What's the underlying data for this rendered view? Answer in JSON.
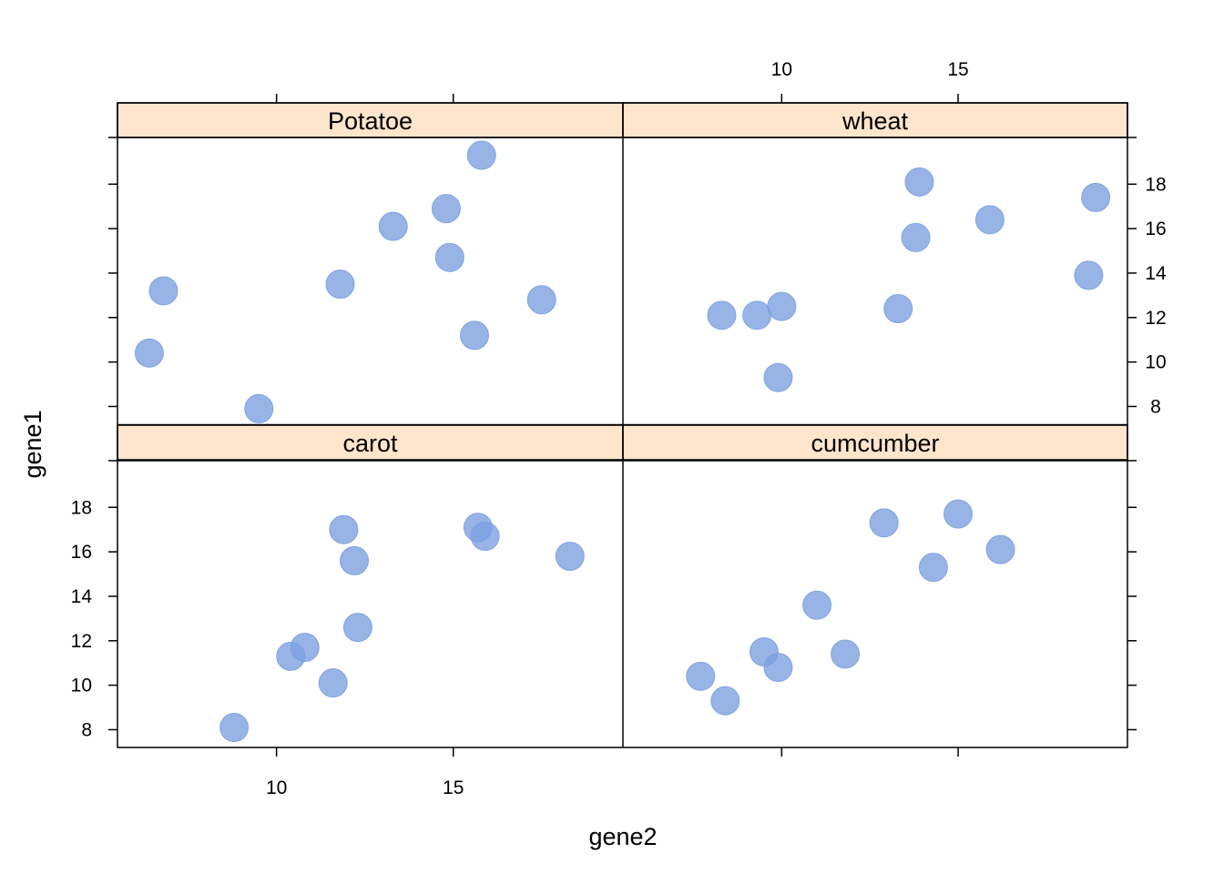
{
  "chart_data": {
    "type": "scatter",
    "layout": "lattice 2x2 panels",
    "xlabel": "gene2",
    "ylabel": "gene1",
    "xlim": [
      5.5,
      19.8
    ],
    "ylim": [
      7.2,
      20.1
    ],
    "x_ticks": [
      10,
      15
    ],
    "y_ticks": [
      8,
      10,
      12,
      14,
      16,
      18
    ],
    "x_tick_labels": [
      "10",
      "15"
    ],
    "y_tick_labels": [
      "8",
      "10",
      "12",
      "14",
      "16",
      "18"
    ],
    "point_color": "#7B9FE0",
    "strip_color": "#FFE5CC",
    "panels": [
      {
        "name": "Potatoe",
        "x": [
          6.4,
          6.8,
          9.5,
          11.8,
          13.3,
          14.8,
          14.9,
          15.6,
          15.8,
          17.5
        ],
        "y": [
          10.4,
          13.2,
          7.9,
          13.5,
          16.1,
          16.9,
          14.7,
          11.2,
          19.3,
          12.8
        ]
      },
      {
        "name": "wheat",
        "x": [
          8.3,
          9.3,
          9.9,
          10.0,
          13.3,
          13.8,
          13.9,
          15.9,
          18.7,
          18.9
        ],
        "y": [
          12.1,
          12.1,
          9.3,
          12.5,
          12.4,
          15.6,
          18.1,
          16.4,
          13.9,
          17.4
        ]
      },
      {
        "name": "carot",
        "x": [
          8.8,
          10.4,
          10.8,
          11.6,
          11.9,
          12.2,
          12.3,
          15.7,
          15.9,
          18.3
        ],
        "y": [
          8.1,
          11.3,
          11.7,
          10.1,
          17.0,
          15.6,
          12.6,
          17.1,
          16.7,
          15.8
        ]
      },
      {
        "name": "cumcumber",
        "x": [
          7.7,
          8.4,
          9.5,
          9.9,
          11.0,
          11.8,
          12.9,
          14.3,
          15.0,
          16.2
        ],
        "y": [
          10.4,
          9.3,
          11.5,
          10.8,
          13.6,
          11.4,
          17.3,
          15.3,
          17.7,
          16.1
        ]
      }
    ]
  }
}
